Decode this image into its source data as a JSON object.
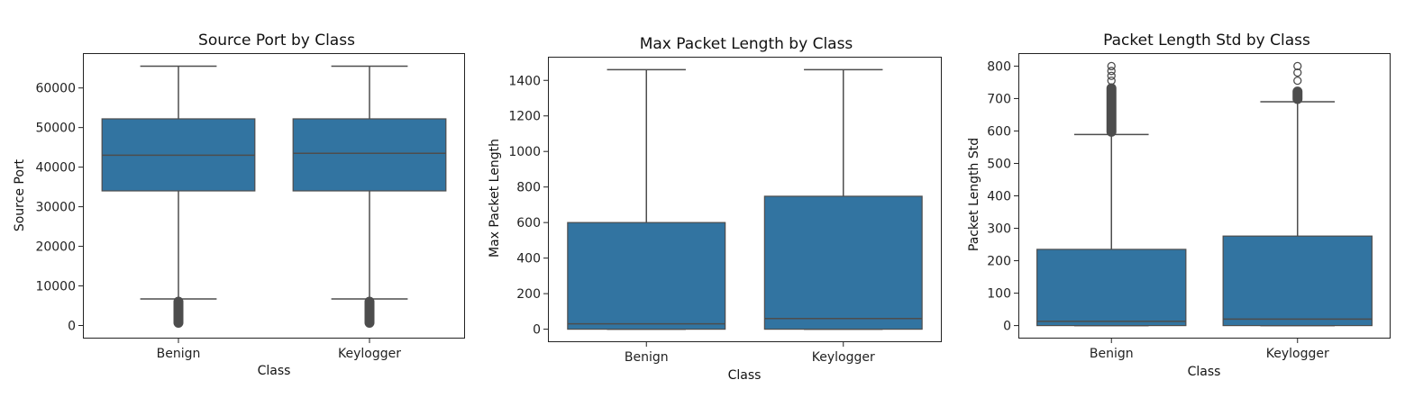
{
  "chart_data": [
    {
      "type": "box",
      "title": "Source Port by Class",
      "xlabel": "Class",
      "ylabel": "Source Port",
      "categories": [
        "Benign",
        "Keylogger"
      ],
      "ylim": [
        -3300,
        68800
      ],
      "yticks": [
        0,
        10000,
        20000,
        30000,
        40000,
        50000,
        60000
      ],
      "boxes": [
        {
          "whislo": 6700,
          "q1": 34000,
          "med": 43000,
          "q3": 52200,
          "whishi": 65500,
          "outliers": {
            "from": 0,
            "to": 6700,
            "dense": true
          }
        },
        {
          "whislo": 6700,
          "q1": 34000,
          "med": 43500,
          "q3": 52200,
          "whishi": 65500,
          "outliers": {
            "from": 0,
            "to": 6700,
            "dense": true
          }
        }
      ],
      "color": "#3274a1"
    },
    {
      "type": "box",
      "title": "Max Packet Length by Class",
      "xlabel": "Class",
      "ylabel": "Max Packet Length",
      "categories": [
        "Benign",
        "Keylogger"
      ],
      "ylim": [
        -73,
        1533
      ],
      "yticks": [
        0,
        200,
        400,
        600,
        800,
        1000,
        1200,
        1400
      ],
      "boxes": [
        {
          "whislo": 0,
          "q1": 0,
          "med": 30,
          "q3": 600,
          "whishi": 1460,
          "outliers": null
        },
        {
          "whislo": 0,
          "q1": 0,
          "med": 60,
          "q3": 748,
          "whishi": 1460,
          "outliers": null
        }
      ],
      "color": "#3274a1"
    },
    {
      "type": "box",
      "title": "Packet Length Std by Class",
      "xlabel": "Class",
      "ylabel": "Packet Length Std",
      "categories": [
        "Benign",
        "Keylogger"
      ],
      "ylim": [
        -40,
        840
      ],
      "yticks": [
        0,
        100,
        200,
        300,
        400,
        500,
        600,
        700,
        800
      ],
      "boxes": [
        {
          "whislo": 0,
          "q1": 0,
          "med": 13,
          "q3": 235,
          "whishi": 589,
          "outliers": {
            "from": 589,
            "to": 740,
            "dense": true,
            "extra": [
              755,
              770,
              785,
              800
            ]
          }
        },
        {
          "whislo": 0,
          "q1": 0,
          "med": 20,
          "q3": 276,
          "whishi": 690,
          "outliers": {
            "from": 690,
            "to": 730,
            "dense": true,
            "extra": [
              755,
              780,
              800
            ]
          }
        }
      ],
      "color": "#3274a1"
    }
  ]
}
